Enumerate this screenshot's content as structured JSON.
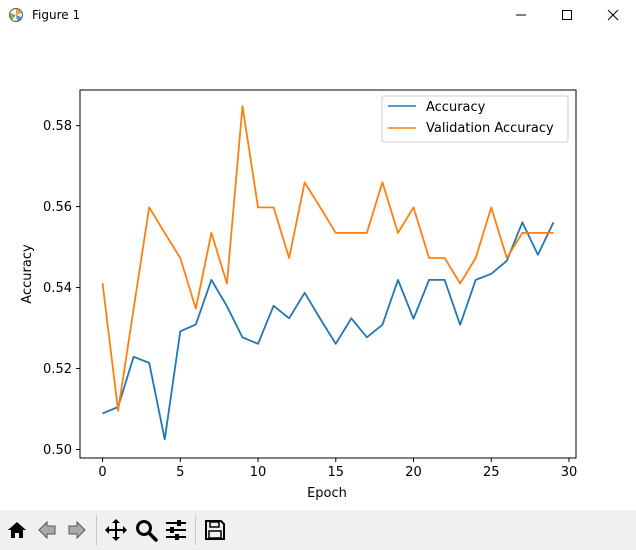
{
  "window": {
    "title": "Figure 1"
  },
  "colors": {
    "accuracy": "#1f77b4",
    "validation": "#ff7f0e"
  },
  "toolbar": {
    "items": [
      {
        "icon": "home-icon"
      },
      {
        "icon": "back-arrow-icon"
      },
      {
        "icon": "forward-arrow-icon"
      },
      {
        "icon": "pan-move-icon"
      },
      {
        "icon": "zoom-magnifier-icon"
      },
      {
        "icon": "configure-subplots-icon"
      },
      {
        "icon": "save-floppy-icon"
      }
    ]
  },
  "chart_data": {
    "type": "line",
    "title": "",
    "xlabel": "Epoch",
    "ylabel": "Accuracy",
    "xlim": [
      -1.45,
      30.45
    ],
    "ylim": [
      0.4979,
      0.5888
    ],
    "xticks": [
      0,
      5,
      10,
      15,
      20,
      25,
      30
    ],
    "yticks": [
      0.5,
      0.52,
      0.54,
      0.56,
      0.58
    ],
    "ytick_labels": [
      "0.50",
      "0.52",
      "0.54",
      "0.56",
      "0.58"
    ],
    "legend_position": "upper right",
    "grid": false,
    "x": [
      0,
      1,
      2,
      3,
      4,
      5,
      6,
      7,
      8,
      9,
      10,
      11,
      12,
      13,
      14,
      15,
      16,
      17,
      18,
      19,
      20,
      21,
      22,
      23,
      24,
      25,
      26,
      27,
      28,
      29
    ],
    "series": [
      {
        "name": "Accuracy",
        "color": "#1f77b4",
        "values": [
          0.5089,
          0.5105,
          0.5229,
          0.5214,
          0.5025,
          0.5292,
          0.5309,
          0.5419,
          0.5354,
          0.5277,
          0.5261,
          0.5355,
          0.5324,
          0.5387,
          0.5323,
          0.5261,
          0.5324,
          0.5277,
          0.5308,
          0.5419,
          0.5323,
          0.5419,
          0.5419,
          0.5308,
          0.5419,
          0.5434,
          0.5466,
          0.5561,
          0.5481,
          0.5561
        ]
      },
      {
        "name": "Validation Accuracy",
        "color": "#ff7f0e",
        "values": [
          0.5411,
          0.5096,
          0.5348,
          0.5598,
          0.5535,
          0.5473,
          0.5348,
          0.5535,
          0.541,
          0.5848,
          0.5598,
          0.5598,
          0.5473,
          0.566,
          0.5598,
          0.5535,
          0.5535,
          0.5535,
          0.566,
          0.5535,
          0.5598,
          0.5473,
          0.5473,
          0.541,
          0.5473,
          0.5598,
          0.5473,
          0.5535,
          0.5535,
          0.5535
        ]
      }
    ]
  }
}
